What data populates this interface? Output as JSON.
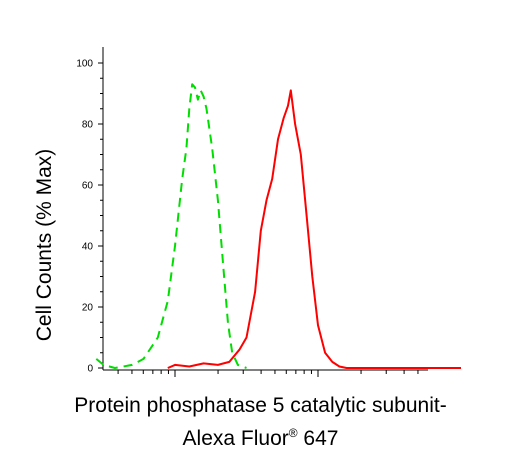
{
  "chart_data": {
    "type": "line",
    "ylabel": "Cell Counts (% Max)",
    "xlabel_line1": "Protein phosphatase 5 catalytic subunit-",
    "xlabel_line2_main": "Alexa Fluor",
    "xlabel_line2_sup": "®",
    "xlabel_line2_end": " 647",
    "ylim": [
      0,
      105
    ],
    "yticks": [
      "0",
      "20",
      "40",
      "60",
      "80",
      "100"
    ],
    "xscale": "log",
    "x_decade_positions": [
      0,
      1,
      2
    ],
    "series": [
      {
        "color": "#00dd00",
        "style": "dashed",
        "points": [
          [
            -0.55,
            3
          ],
          [
            -0.5,
            1
          ],
          [
            -0.42,
            0
          ],
          [
            -0.3,
            1
          ],
          [
            -0.22,
            3
          ],
          [
            -0.12,
            10
          ],
          [
            -0.05,
            22
          ],
          [
            0.0,
            40
          ],
          [
            0.05,
            62
          ],
          [
            0.08,
            72
          ],
          [
            0.1,
            85
          ],
          [
            0.12,
            93
          ],
          [
            0.14,
            92
          ],
          [
            0.16,
            88
          ],
          [
            0.18,
            91
          ],
          [
            0.2,
            89
          ],
          [
            0.22,
            85
          ],
          [
            0.26,
            72
          ],
          [
            0.3,
            55
          ],
          [
            0.34,
            32
          ],
          [
            0.37,
            15
          ],
          [
            0.4,
            5
          ],
          [
            0.44,
            1
          ],
          [
            0.5,
            0
          ]
        ]
      },
      {
        "color": "#ff0000",
        "style": "solid",
        "points": [
          [
            -0.05,
            0
          ],
          [
            0.0,
            1
          ],
          [
            0.1,
            0.5
          ],
          [
            0.2,
            1.5
          ],
          [
            0.3,
            1
          ],
          [
            0.38,
            2
          ],
          [
            0.45,
            6
          ],
          [
            0.5,
            10
          ],
          [
            0.56,
            25
          ],
          [
            0.6,
            45
          ],
          [
            0.64,
            55
          ],
          [
            0.68,
            62
          ],
          [
            0.72,
            75
          ],
          [
            0.76,
            82
          ],
          [
            0.79,
            86
          ],
          [
            0.81,
            91
          ],
          [
            0.84,
            80
          ],
          [
            0.88,
            70
          ],
          [
            0.92,
            50
          ],
          [
            0.96,
            30
          ],
          [
            1.0,
            14
          ],
          [
            1.05,
            5
          ],
          [
            1.1,
            2
          ],
          [
            1.15,
            0.5
          ],
          [
            1.2,
            0
          ],
          [
            2.0,
            0
          ]
        ]
      }
    ]
  }
}
